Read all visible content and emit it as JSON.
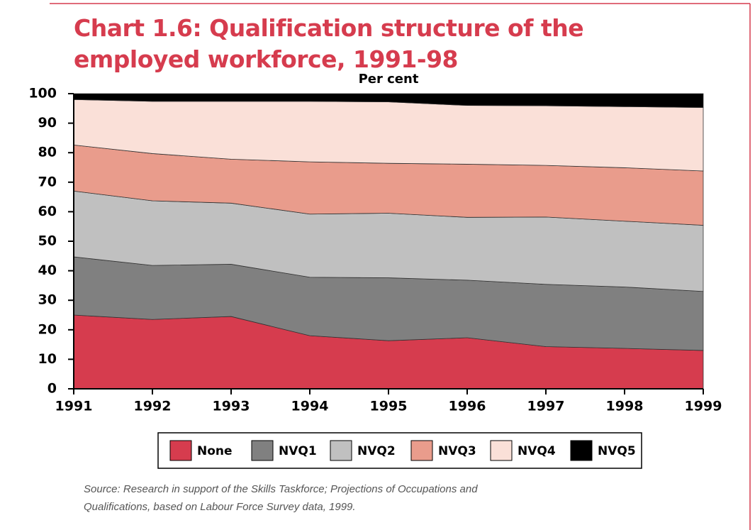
{
  "chart_data": {
    "type": "stacked_area",
    "title": "Chart 1.6: Qualification structure of the employed workforce, 1991-98",
    "ylabel": "Per cent",
    "x": [
      1991,
      1992,
      1993,
      1994,
      1995,
      1996,
      1997,
      1998,
      1999
    ],
    "xlim": [
      1991,
      1999
    ],
    "xticks": [
      1991,
      1992,
      1993,
      1994,
      1995,
      1996,
      1997,
      1998,
      1999
    ],
    "ylim": [
      0,
      100
    ],
    "yticks": [
      0,
      10,
      20,
      30,
      40,
      50,
      60,
      70,
      80,
      90,
      100
    ],
    "series": [
      {
        "name": "None",
        "color": "#d63c4e",
        "values": [
          25,
          23.5,
          24.5,
          18,
          16.3,
          17.3,
          14.3,
          13.7,
          13
        ]
      },
      {
        "name": "NVQ1",
        "color": "#808080",
        "values": [
          19.7,
          18.3,
          17.7,
          19.8,
          21.3,
          19.5,
          21.1,
          20.8,
          20
        ]
      },
      {
        "name": "NVQ2",
        "color": "#c0c0c0",
        "values": [
          22.3,
          21.9,
          20.7,
          21.4,
          21.9,
          21.3,
          22.8,
          22.3,
          22.4
        ]
      },
      {
        "name": "NVQ3",
        "color": "#e99c8c",
        "values": [
          15.6,
          16,
          14.9,
          17.7,
          16.9,
          18,
          17.5,
          18.1,
          18.4
        ]
      },
      {
        "name": "NVQ4",
        "color": "#fae0d8",
        "values": [
          15.4,
          17.7,
          19.6,
          20.5,
          20.8,
          19.9,
          20.2,
          20.7,
          21.5
        ]
      },
      {
        "name": "NVQ5",
        "color": "#000000",
        "values": [
          2,
          2.6,
          2.6,
          2.6,
          2.8,
          4,
          4.1,
          4.4,
          4.7
        ]
      }
    ],
    "legend": "bottom",
    "source": "Source: Research in support of the Skills Taskforce; Projections of Occupations and Qualifications, based on Labour Force Survey data, 1999."
  }
}
